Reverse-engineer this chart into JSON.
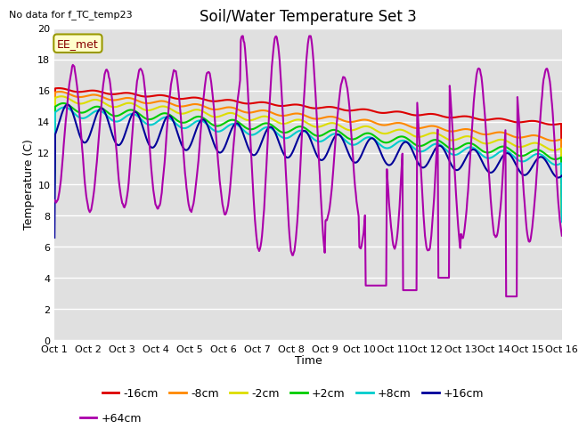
{
  "title": "Soil/Water Temperature Set 3",
  "xlabel": "Time",
  "ylabel": "Temperature (C)",
  "note": "No data for f_TC_temp23",
  "annotation": "EE_met",
  "ylim": [
    0,
    20
  ],
  "yticks": [
    0,
    2,
    4,
    6,
    8,
    10,
    12,
    14,
    16,
    18,
    20
  ],
  "xtick_labels": [
    "Oct 1",
    "Oct 2",
    "Oct 3",
    "Oct 4",
    "Oct 5",
    "Oct 6",
    "Oct 7",
    "Oct 8",
    "Oct 9",
    "Oct 10",
    "Oct 11",
    "Oct 12",
    "Oct 13",
    "Oct 14",
    "Oct 15",
    "Oct 16"
  ],
  "series_order": [
    "-16cm",
    "-8cm",
    "-2cm",
    "+2cm",
    "+8cm",
    "+16cm",
    "+64cm"
  ],
  "series": {
    "-16cm": {
      "color": "#dd0000",
      "lw": 1.5
    },
    "-8cm": {
      "color": "#ff8800",
      "lw": 1.5
    },
    "-2cm": {
      "color": "#dddd00",
      "lw": 1.5
    },
    "+2cm": {
      "color": "#00cc00",
      "lw": 1.5
    },
    "+8cm": {
      "color": "#00cccc",
      "lw": 1.5
    },
    "+16cm": {
      "color": "#000099",
      "lw": 1.5
    },
    "+64cm": {
      "color": "#aa00aa",
      "lw": 1.5
    }
  },
  "bg_color": "#e0e0e0",
  "fig_bg": "#ffffff",
  "grid_color": "#ffffff",
  "title_fontsize": 12,
  "axis_label_fontsize": 9,
  "tick_fontsize": 8,
  "note_fontsize": 8,
  "annot_fontsize": 9,
  "legend_fontsize": 9
}
